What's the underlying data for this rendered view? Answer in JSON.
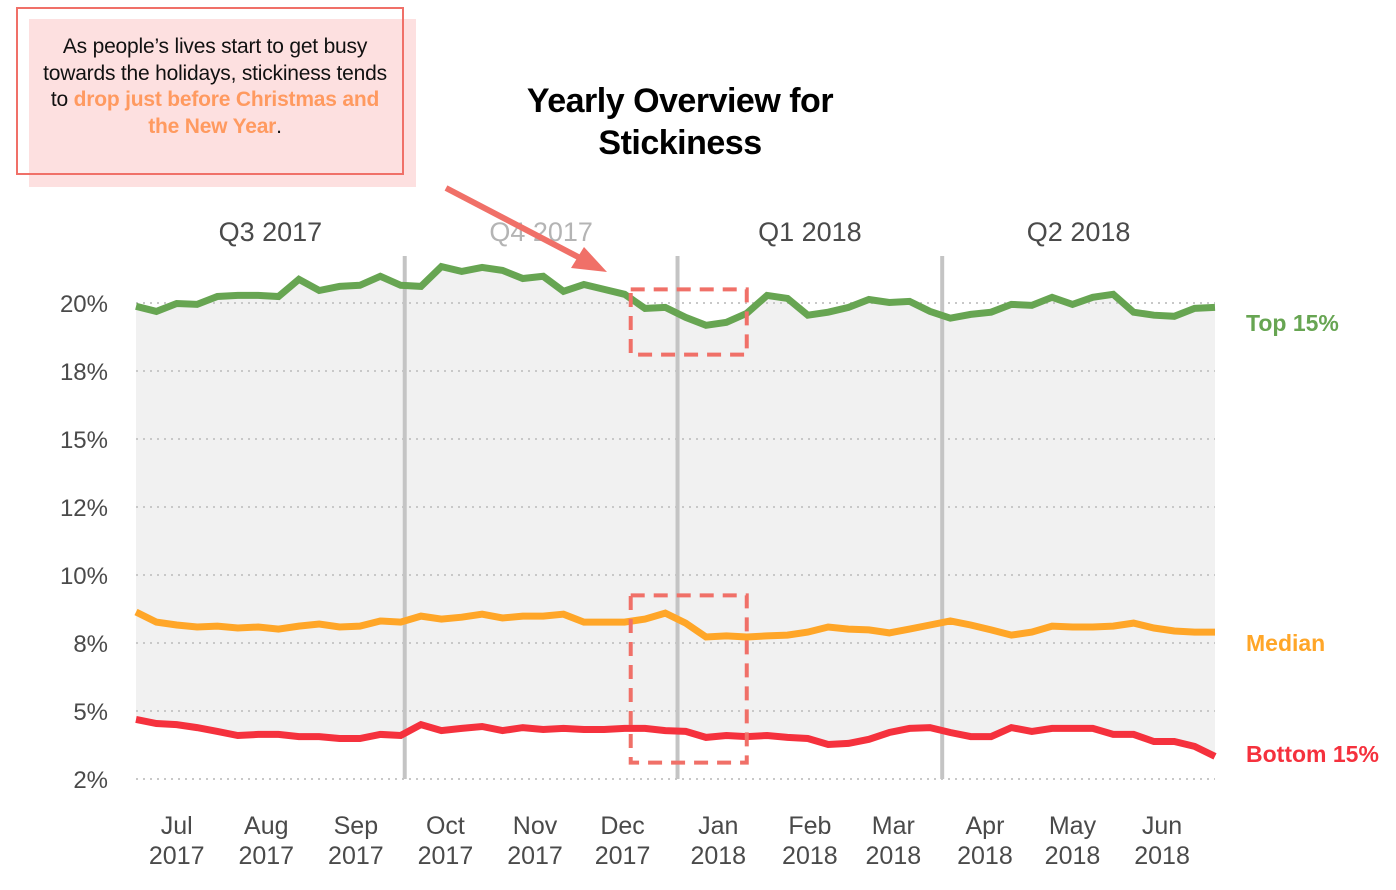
{
  "callout": {
    "text_plain": "As people’s lives start to get busy towards the holidays, stickiness tends to ",
    "text_highlight": "drop just before Christmas and the New Year",
    "text_end": ".",
    "highlight_color": "#ff9a60",
    "border_color": "#f07068"
  },
  "chart_data": {
    "type": "line",
    "title": "Yearly Overview for Stickiness",
    "xlabel": "",
    "ylabel": "",
    "ylim": [
      2.5,
      20
    ],
    "grid": true,
    "yticks": [
      {
        "value": 20,
        "label": "20%"
      },
      {
        "value": 17.5,
        "label": "18%"
      },
      {
        "value": 15,
        "label": "15%"
      },
      {
        "value": 12.5,
        "label": "12%"
      },
      {
        "value": 10,
        "label": "10%"
      },
      {
        "value": 7.5,
        "label": "8%"
      },
      {
        "value": 5,
        "label": "5%"
      },
      {
        "value": 2.5,
        "label": "2%"
      }
    ],
    "x_range_weeks": [
      0,
      53
    ],
    "xticks": [
      {
        "week": 2,
        "month": "Jul",
        "year": "2017"
      },
      {
        "week": 6.4,
        "month": "Aug",
        "year": "2017"
      },
      {
        "week": 10.8,
        "month": "Sep",
        "year": "2017"
      },
      {
        "week": 15.2,
        "month": "Oct",
        "year": "2017"
      },
      {
        "week": 19.6,
        "month": "Nov",
        "year": "2017"
      },
      {
        "week": 23.9,
        "month": "Dec",
        "year": "2017"
      },
      {
        "week": 28.6,
        "month": "Jan",
        "year": "2018"
      },
      {
        "week": 33.1,
        "month": "Feb",
        "year": "2018"
      },
      {
        "week": 37.2,
        "month": "Mar",
        "year": "2018"
      },
      {
        "week": 41.7,
        "month": "Apr",
        "year": "2018"
      },
      {
        "week": 46,
        "month": "May",
        "year": "2018"
      },
      {
        "week": 50.4,
        "month": "Jun",
        "year": "2018"
      }
    ],
    "quarters": [
      {
        "label": "Q3 2017",
        "start": 0,
        "end": 13.2,
        "muted": false
      },
      {
        "label": "Q4 2017",
        "start": 13.2,
        "end": 26.6,
        "muted": true
      },
      {
        "label": "Q1 2018",
        "start": 26.6,
        "end": 39.6,
        "muted": false
      },
      {
        "label": "Q2 2018",
        "start": 39.6,
        "end": 53,
        "muted": false
      }
    ],
    "quarter_dividers": [
      13.2,
      26.6,
      39.6
    ],
    "series": [
      {
        "name": "Top 15%",
        "color": "#67a552",
        "values": [
          19.88,
          19.69,
          19.98,
          19.95,
          20.24,
          20.28,
          20.28,
          20.24,
          20.87,
          20.46,
          20.61,
          20.65,
          20.98,
          20.65,
          20.61,
          21.34,
          21.16,
          21.31,
          21.2,
          20.9,
          20.98,
          20.43,
          20.68,
          20.5,
          20.32,
          19.8,
          19.84,
          19.47,
          19.18,
          19.29,
          19.62,
          20.28,
          20.17,
          19.55,
          19.66,
          19.84,
          20.13,
          20.02,
          20.06,
          19.69,
          19.44,
          19.58,
          19.66,
          19.95,
          19.91,
          20.21,
          19.95,
          20.21,
          20.32,
          19.66,
          19.55,
          19.51,
          19.8,
          19.84
        ]
      },
      {
        "name": "Median",
        "color": "#ffa628",
        "values": [
          8.64,
          8.27,
          8.16,
          8.09,
          8.12,
          8.05,
          8.09,
          8.01,
          8.12,
          8.2,
          8.09,
          8.12,
          8.31,
          8.27,
          8.49,
          8.38,
          8.45,
          8.56,
          8.42,
          8.49,
          8.49,
          8.56,
          8.27,
          8.27,
          8.27,
          8.38,
          8.6,
          8.23,
          7.72,
          7.76,
          7.72,
          7.76,
          7.79,
          7.9,
          8.09,
          8.01,
          7.98,
          7.87,
          8.01,
          8.16,
          8.31,
          8.16,
          7.98,
          7.79,
          7.9,
          8.12,
          8.09,
          8.09,
          8.12,
          8.23,
          8.05,
          7.94,
          7.9,
          7.9
        ]
      },
      {
        "name": "Bottom 15%",
        "color": "#f5313d",
        "values": [
          4.69,
          4.54,
          4.5,
          4.39,
          4.25,
          4.1,
          4.14,
          4.14,
          4.06,
          4.06,
          3.99,
          3.99,
          4.14,
          4.1,
          4.5,
          4.28,
          4.36,
          4.43,
          4.28,
          4.39,
          4.32,
          4.36,
          4.32,
          4.32,
          4.36,
          4.36,
          4.28,
          4.25,
          4.03,
          4.1,
          4.06,
          4.1,
          4.03,
          3.99,
          3.77,
          3.81,
          3.96,
          4.21,
          4.36,
          4.39,
          4.21,
          4.06,
          4.06,
          4.39,
          4.25,
          4.36,
          4.36,
          4.36,
          4.14,
          4.14,
          3.88,
          3.88,
          3.7,
          3.33
        ]
      }
    ],
    "annotation_boxes": [
      {
        "x_start_week": 24.3,
        "x_end_week": 30,
        "y_top": 20.5,
        "y_bottom": 18.1
      },
      {
        "x_start_week": 24.3,
        "x_end_week": 30,
        "y_top": 9.25,
        "y_bottom": 3.1
      }
    ],
    "annotation_color": "#f07068"
  }
}
